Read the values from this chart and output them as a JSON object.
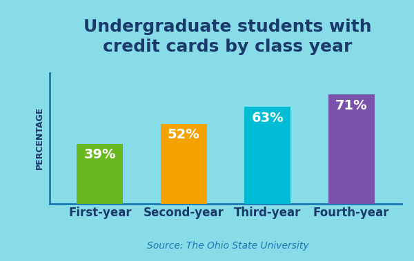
{
  "title": "Undergraduate students with\ncredit cards by class year",
  "categories": [
    "First-year",
    "Second-year",
    "Third-year",
    "Fourth-year"
  ],
  "values": [
    39,
    52,
    63,
    71
  ],
  "bar_colors": [
    "#6ab820",
    "#f5a200",
    "#00bcd4",
    "#7b52ab"
  ],
  "bar_labels": [
    "39%",
    "52%",
    "63%",
    "71%"
  ],
  "ylabel": "PERCENTAGE",
  "source": "Source: The Ohio State University",
  "background_color": "#87dce8",
  "title_color": "#1a3a6b",
  "label_color": "#ffffff",
  "axis_color": "#1a7ab5",
  "tick_label_color": "#1a3a6b",
  "source_color": "#1a7ab5",
  "ylim": [
    0,
    85
  ],
  "title_fontsize": 18,
  "bar_label_fontsize": 14,
  "tick_label_fontsize": 12,
  "ylabel_fontsize": 9,
  "source_fontsize": 10
}
